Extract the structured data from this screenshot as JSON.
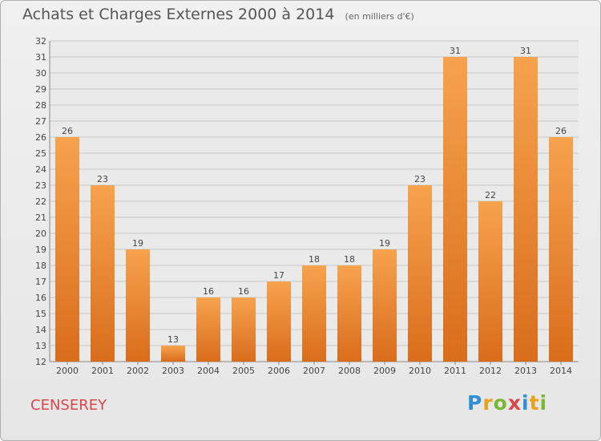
{
  "header": {
    "title": "Achats et Charges Externes 2000 à 2014",
    "unit": "(en milliers d'€)"
  },
  "footer": {
    "town": "CENSEREY",
    "logo": "Proxiti"
  },
  "colors": {
    "bar_light": "#f7a24d",
    "bar_dark": "#d96d1c",
    "grid": "#c8c8c8",
    "text": "#444444",
    "town": "#d9474a"
  },
  "chart_data": {
    "type": "bar",
    "categories": [
      "2000",
      "2001",
      "2002",
      "2003",
      "2004",
      "2005",
      "2006",
      "2007",
      "2008",
      "2009",
      "2010",
      "2011",
      "2012",
      "2013",
      "2014"
    ],
    "values": [
      26,
      23,
      19,
      13,
      16,
      16,
      17,
      18,
      18,
      19,
      23,
      31,
      22,
      31,
      26
    ],
    "title": "Achats et Charges Externes 2000 à 2014",
    "subtitle": "(en milliers d'€)",
    "xlabel": "",
    "ylabel": "",
    "ylim": [
      12,
      32
    ],
    "yticks": [
      12,
      13,
      14,
      15,
      16,
      17,
      18,
      19,
      20,
      21,
      22,
      23,
      24,
      25,
      26,
      27,
      28,
      29,
      30,
      31,
      32
    ],
    "grid": true,
    "data_labels": true
  }
}
